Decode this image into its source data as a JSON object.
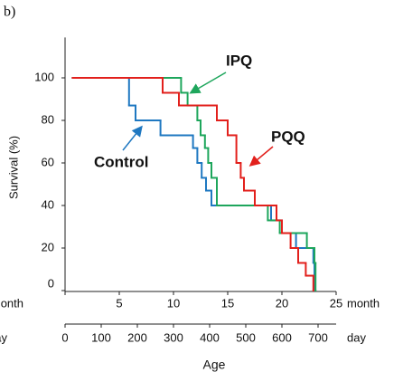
{
  "chart_data": {
    "type": "step",
    "panel_label": "b)",
    "ylabel": "Survival (%)",
    "xlabel": "month",
    "x2label": "day",
    "axis_title": "Age",
    "xlim": [
      0,
      25
    ],
    "xticks": [
      5,
      10,
      15,
      20,
      25
    ],
    "x2lim": [
      0,
      750
    ],
    "x2ticks": [
      0,
      100,
      200,
      300,
      400,
      500,
      600,
      700
    ],
    "ylim": [
      0,
      119
    ],
    "yticks": [
      0,
      20,
      40,
      60,
      80,
      100
    ],
    "series": [
      {
        "name": "Control",
        "color": "#1f78c1",
        "x": [
          0.7,
          5.9,
          6.5,
          8.8,
          11.8,
          12.2,
          12.6,
          13.0,
          13.5,
          19.0,
          20.0,
          21.3,
          22.9,
          23.0
        ],
        "values": [
          100,
          87,
          80,
          73,
          67,
          60,
          53,
          47,
          40,
          33,
          27,
          20,
          13,
          0
        ]
      },
      {
        "name": "IPQ",
        "color": "#1ea65c",
        "x": [
          0.7,
          10.7,
          11.3,
          12.2,
          12.5,
          12.9,
          13.2,
          13.5,
          14.0,
          18.7,
          19.8,
          22.3,
          23.0,
          23.1
        ],
        "values": [
          100,
          93,
          87,
          80,
          73,
          67,
          60,
          53,
          40,
          33,
          27,
          20,
          13,
          0
        ]
      },
      {
        "name": "PQQ",
        "color": "#e2201c",
        "x": [
          0.7,
          9.0,
          10.5,
          14.0,
          15.0,
          15.8,
          16.2,
          16.5,
          17.5,
          19.5,
          20.0,
          20.8,
          21.5,
          22.2,
          22.9
        ],
        "values": [
          100,
          93,
          87,
          80,
          73,
          60,
          53,
          47,
          40,
          33,
          27,
          20,
          13,
          7,
          0
        ]
      }
    ]
  }
}
